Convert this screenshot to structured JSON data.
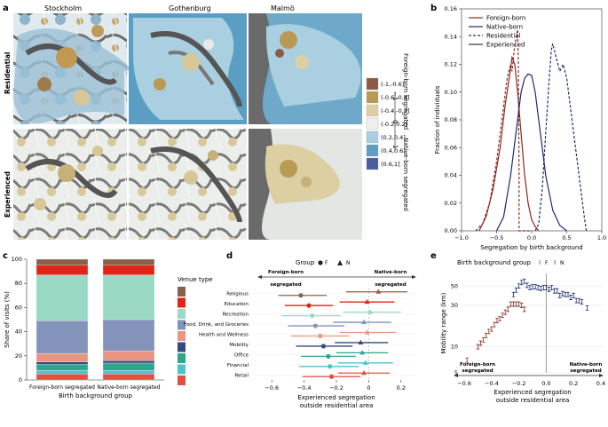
{
  "panels": {
    "a": "a",
    "b": "b",
    "c": "c",
    "d": "d",
    "e": "e"
  },
  "panel_a": {
    "cities": [
      "Stockholm",
      "Gothenburg",
      "Malmö"
    ],
    "rows": [
      "Residential",
      "Experienced"
    ],
    "legend_items": [
      "(-1,-0.6]",
      "(-0.6,-0.4]",
      "(-0.4,-0.2]",
      "(-0.2,0.2]",
      "(0.2,0.4]",
      "(0.4,0.6]",
      "(0.6,1]"
    ],
    "legend_colors": [
      "#8c5a4a",
      "#b89a55",
      "#dccfa2",
      "#eeefee",
      "#a9cfe0",
      "#5f9ec3",
      "#4a5e9e"
    ],
    "side_top": "Foreign-born segregated",
    "side_bottom": "Native-born segregated",
    "tick_neg": "−1",
    "tick_zero": "0",
    "tick_pos": "1"
  },
  "chart_data": [
    {
      "id": "b",
      "type": "line",
      "xlabel": "Segregation by birth background",
      "ylabel": "Fraction of individuals",
      "xlim": [
        -1.0,
        1.0
      ],
      "ylim": [
        0,
        0.16
      ],
      "xticks": [
        "−1.0",
        "−0.5",
        "0.0",
        "0.5",
        "1.0"
      ],
      "xtick_values": [
        -1.0,
        -0.5,
        0.0,
        0.5,
        1.0
      ],
      "yticks": [
        "0.00",
        "0.02",
        "0.04",
        "0.06",
        "0.08",
        "0.10",
        "0.12",
        "0.14",
        "0.16"
      ],
      "ytick_values": [
        0,
        0.02,
        0.04,
        0.06,
        0.08,
        0.1,
        0.12,
        0.14,
        0.16
      ],
      "legend": [
        "Foreign-born",
        "Native-born",
        "Residential",
        "Experienced"
      ],
      "series": [
        {
          "name": "Foreign-born Residential",
          "color": "#8b2a1f",
          "dash": true,
          "x": [
            -0.8,
            -0.7,
            -0.6,
            -0.5,
            -0.45,
            -0.4,
            -0.35,
            -0.3,
            -0.28,
            -0.25,
            -0.22,
            -0.2,
            -0.19,
            -0.18,
            -0.18,
            -0.1,
            0.0
          ],
          "y": [
            0,
            0.005,
            0.02,
            0.05,
            0.07,
            0.09,
            0.11,
            0.12,
            0.115,
            0.13,
            0.14,
            0.145,
            0.12,
            0.04,
            0,
            0,
            0
          ]
        },
        {
          "name": "Foreign-born Experienced",
          "color": "#8b2a1f",
          "dash": false,
          "x": [
            -0.75,
            -0.65,
            -0.55,
            -0.45,
            -0.38,
            -0.32,
            -0.28,
            -0.24,
            -0.2,
            -0.15,
            -0.1,
            -0.05,
            0.0,
            0.05,
            0.1
          ],
          "y": [
            0,
            0.01,
            0.03,
            0.06,
            0.09,
            0.11,
            0.125,
            0.12,
            0.1,
            0.07,
            0.04,
            0.02,
            0.008,
            0.003,
            0
          ]
        },
        {
          "name": "Native-born Residential",
          "color": "#1c2a6e",
          "dash": true,
          "x": [
            0.05,
            0.1,
            0.15,
            0.2,
            0.25,
            0.28,
            0.3,
            0.35,
            0.4,
            0.45,
            0.5,
            0.55,
            0.6,
            0.65,
            0.7,
            0.75,
            0.78
          ],
          "y": [
            0,
            0.005,
            0.03,
            0.07,
            0.11,
            0.13,
            0.135,
            0.125,
            0.115,
            0.12,
            0.11,
            0.09,
            0.07,
            0.05,
            0.03,
            0.01,
            0
          ]
        },
        {
          "name": "Native-born Experienced",
          "color": "#1c2a6e",
          "dash": false,
          "x": [
            -0.5,
            -0.4,
            -0.3,
            -0.2,
            -0.15,
            -0.1,
            -0.05,
            0.0,
            0.05,
            0.1,
            0.15,
            0.2,
            0.3,
            0.4,
            0.5
          ],
          "y": [
            0,
            0.01,
            0.04,
            0.08,
            0.1,
            0.11,
            0.113,
            0.112,
            0.1,
            0.08,
            0.06,
            0.04,
            0.015,
            0.004,
            0
          ]
        }
      ]
    },
    {
      "id": "c",
      "type": "bar",
      "stacked": true,
      "ylabel": "Share of visits (%)",
      "xlabel": "Birth background group",
      "ylim": [
        0,
        100
      ],
      "yticks": [
        "0",
        "20",
        "40",
        "60",
        "80",
        "100"
      ],
      "ytick_values": [
        0,
        20,
        40,
        60,
        80,
        100
      ],
      "categories": [
        "Foreign-born segregated",
        "Native-born segregated"
      ],
      "legend_title": "Venue type",
      "series": [
        {
          "name": "Retail",
          "color": "#e0503f",
          "values": [
            5,
            5
          ]
        },
        {
          "name": "Financial",
          "color": "#4fc2cf",
          "values": [
            3,
            3
          ]
        },
        {
          "name": "Office",
          "color": "#2ea58c",
          "values": [
            5,
            6
          ]
        },
        {
          "name": "Mobility",
          "color": "#34497d",
          "values": [
            2,
            2
          ]
        },
        {
          "name": "Health and Wellness",
          "color": "#ea9582",
          "values": [
            7,
            8
          ]
        },
        {
          "name": "Food, Drink, and Groceries",
          "color": "#8493b9",
          "values": [
            27,
            26
          ]
        },
        {
          "name": "Recreation",
          "color": "#9ad9c3",
          "values": [
            38,
            37
          ]
        },
        {
          "name": "Education",
          "color": "#e02418",
          "values": [
            8,
            8
          ]
        },
        {
          "name": "Religious",
          "color": "#8c6048",
          "values": [
            5,
            5
          ]
        }
      ]
    },
    {
      "id": "d",
      "type": "scatter",
      "title": "Group",
      "legend": [
        "F",
        "N"
      ],
      "xlabel": "Experienced segregation",
      "xlabel2": "outside residential area",
      "xlim": [
        -0.7,
        0.3
      ],
      "xticks": [
        "−0.6",
        "−0.4",
        "−0.2",
        "0",
        "0.2"
      ],
      "xtick_values": [
        -0.6,
        -0.4,
        -0.2,
        0,
        0.2
      ],
      "left_label": "Foreign-born",
      "left_label2": "segregated",
      "right_label": "Native-born",
      "right_label2": "segregated",
      "categories": [
        "Religious",
        "Education",
        "Recreation",
        "Food, Drink, and Groceries",
        "Health and Wellness",
        "Mobility",
        "Office",
        "Financial",
        "Retail"
      ],
      "colors": [
        "#8c6048",
        "#e02418",
        "#9ad9c3",
        "#8493b9",
        "#ea9582",
        "#34497d",
        "#2ea58c",
        "#4fc2cf",
        "#e0503f"
      ],
      "F": {
        "mean": [
          -0.42,
          -0.37,
          -0.35,
          -0.33,
          -0.3,
          -0.28,
          -0.25,
          -0.24,
          -0.23
        ],
        "lo": [
          -0.56,
          -0.52,
          -0.54,
          -0.5,
          -0.48,
          -0.45,
          -0.42,
          -0.43,
          -0.41
        ],
        "hi": [
          -0.26,
          -0.22,
          -0.17,
          -0.15,
          -0.12,
          -0.1,
          -0.08,
          -0.06,
          -0.05
        ]
      },
      "N": {
        "mean": [
          0.06,
          -0.01,
          0.01,
          -0.03,
          -0.01,
          -0.05,
          -0.04,
          -0.02,
          -0.03
        ],
        "lo": [
          -0.14,
          -0.18,
          -0.16,
          -0.22,
          -0.18,
          -0.21,
          -0.2,
          -0.19,
          -0.19
        ],
        "hi": [
          0.24,
          0.16,
          0.2,
          0.14,
          0.17,
          0.12,
          0.12,
          0.15,
          0.13
        ]
      }
    },
    {
      "id": "e",
      "type": "scatter",
      "title": "Birth background group",
      "legend": [
        "F",
        "N"
      ],
      "ylabel": "Mobility range (km)",
      "xlabel": "Experienced segregation",
      "xlabel2": "outside residential area",
      "xlim": [
        -0.62,
        0.42
      ],
      "ylim_log": [
        5,
        70
      ],
      "xticks": [
        "−0.6",
        "−0.4",
        "−0.2",
        "0.0",
        "0.2",
        "0.4"
      ],
      "xtick_values": [
        -0.6,
        -0.4,
        -0.2,
        0.0,
        0.2,
        0.4
      ],
      "yticks": [
        "5",
        "10",
        "30",
        "50"
      ],
      "ytick_values": [
        5,
        10,
        30,
        50
      ],
      "left_label": "Foreign-born",
      "left_label2": "segregated",
      "right_label": "Native-born",
      "right_label2": "segregated",
      "F": {
        "x": [
          -0.58,
          -0.5,
          -0.48,
          -0.46,
          -0.44,
          -0.42,
          -0.4,
          -0.38,
          -0.36,
          -0.34,
          -0.32,
          -0.3,
          -0.28,
          -0.26,
          -0.24,
          -0.22,
          -0.2,
          -0.18,
          -0.16
        ],
        "y": [
          7,
          10,
          11,
          12,
          13.5,
          15,
          16,
          18,
          20,
          21,
          23,
          25,
          27,
          31,
          31,
          31,
          31,
          30,
          27
        ]
      },
      "N": {
        "x": [
          -0.24,
          -0.22,
          -0.2,
          -0.18,
          -0.16,
          -0.14,
          -0.12,
          -0.1,
          -0.08,
          -0.06,
          -0.04,
          -0.02,
          0.0,
          0.02,
          0.04,
          0.06,
          0.08,
          0.1,
          0.12,
          0.14,
          0.16,
          0.18,
          0.2,
          0.22,
          0.24,
          0.26,
          0.3
        ],
        "y": [
          40,
          45,
          50,
          55,
          57,
          51,
          48,
          49,
          49,
          48,
          47,
          48,
          48,
          46,
          48,
          44,
          44,
          39,
          41,
          40,
          40,
          37,
          39,
          34,
          34,
          33,
          28
        ]
      }
    }
  ]
}
